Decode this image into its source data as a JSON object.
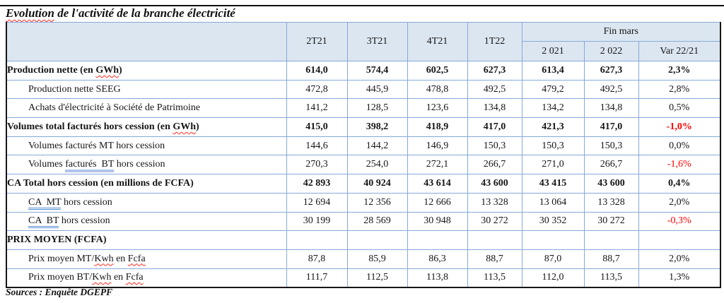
{
  "document": {
    "title_segments": [
      {
        "t": "Evolution",
        "m": "spell"
      },
      {
        "t": " de l'activité de la branche électricité",
        "m": null
      }
    ],
    "source_note": "Sources : Enquête DGEPF"
  },
  "table": {
    "corner_label": "",
    "quarters": [
      "2T21",
      "3T21",
      "4T21",
      "1T22"
    ],
    "fin_mars": {
      "label": "Fin mars",
      "sub": [
        "2 021",
        "2 022",
        "Var 22/21"
      ]
    },
    "rows": [
      {
        "label": [
          {
            "t": "Production nette (en ",
            "m": null
          },
          {
            "t": "GWh",
            "m": "spell"
          },
          {
            "t": ")",
            "m": null
          }
        ],
        "bold": true,
        "indent": false,
        "top": "black",
        "values": [
          "614,0",
          "574,4",
          "602,5",
          "627,3",
          "613,4",
          "627,3"
        ],
        "var": {
          "text": "2,3%",
          "negative": false
        }
      },
      {
        "label": [
          {
            "t": "Production nette SEEG",
            "m": null
          }
        ],
        "bold": false,
        "indent": true,
        "top": "blue",
        "values": [
          "472,8",
          "445,9",
          "478,8",
          "492,5",
          "479,2",
          "492,5"
        ],
        "var": {
          "text": "2,8%",
          "negative": false
        }
      },
      {
        "label": [
          {
            "t": "Achats d'électricité à Société de Patrimoine",
            "m": null
          }
        ],
        "bold": false,
        "indent": true,
        "top": "blue",
        "values": [
          "141,2",
          "128,5",
          "123,6",
          "134,8",
          "134,2",
          "134,8"
        ],
        "var": {
          "text": "0,5%",
          "negative": false
        }
      },
      {
        "label": [
          {
            "t": "Volumes total facturés hors cession (en ",
            "m": null
          },
          {
            "t": "GWh",
            "m": "spell"
          },
          {
            "t": ")",
            "m": null
          }
        ],
        "bold": true,
        "indent": false,
        "top": "black",
        "values": [
          "415,0",
          "398,2",
          "418,9",
          "417,0",
          "421,3",
          "417,0"
        ],
        "var": {
          "text": "-1,0%",
          "negative": true
        }
      },
      {
        "label": [
          {
            "t": "Volumes facturés MT hors cession",
            "m": null
          }
        ],
        "bold": false,
        "indent": true,
        "top": "blue",
        "values": [
          "144,6",
          "144,2",
          "146,9",
          "150,3",
          "150,3",
          "150,3"
        ],
        "var": {
          "text": "0,0%",
          "negative": false
        }
      },
      {
        "label": [
          {
            "t": "Volumes ",
            "m": null
          },
          {
            "t": "facturés  BT",
            "m": "grammar-thick"
          },
          {
            "t": " hors cession",
            "m": null
          }
        ],
        "bold": false,
        "indent": true,
        "top": "blue",
        "values": [
          "270,3",
          "254,0",
          "272,1",
          "266,7",
          "271,0",
          "266,7"
        ],
        "var": {
          "text": "-1,6%",
          "negative": true
        }
      },
      {
        "label": [
          {
            "t": "CA Total hors cession (en millions de FCFA)",
            "m": null
          }
        ],
        "bold": true,
        "indent": false,
        "top": "black",
        "values": [
          "42 893",
          "40 924",
          "43 614",
          "43 600",
          "43 415",
          "43 600"
        ],
        "var": {
          "text": "0,4%",
          "negative": false
        }
      },
      {
        "label": [
          {
            "t": "CA  MT",
            "m": "grammar"
          },
          {
            "t": " hors cession",
            "m": null
          }
        ],
        "bold": false,
        "indent": true,
        "top": "blue",
        "values": [
          "12 694",
          "12 356",
          "12 666",
          "13 328",
          "13 064",
          "13 328"
        ],
        "var": {
          "text": "2,0%",
          "negative": false
        }
      },
      {
        "label": [
          {
            "t": "CA  BT",
            "m": "grammar"
          },
          {
            "t": " hors cession",
            "m": null
          }
        ],
        "bold": false,
        "indent": true,
        "top": "blue",
        "values": [
          "30 199",
          "28 569",
          "30 948",
          "30 272",
          "30 352",
          "30 272"
        ],
        "var": {
          "text": "-0,3%",
          "negative": true
        }
      },
      {
        "label": [
          {
            "t": "PRIX MOYEN (FCFA)",
            "m": null
          }
        ],
        "bold": true,
        "indent": false,
        "top": "black",
        "values": [
          "",
          "",
          "",
          "",
          "",
          ""
        ],
        "var": {
          "text": "",
          "negative": false
        }
      },
      {
        "label": [
          {
            "t": "Prix moyen MT/",
            "m": null
          },
          {
            "t": "Kwh",
            "m": "spell"
          },
          {
            "t": " en ",
            "m": null
          },
          {
            "t": "Fcfa",
            "m": "spell"
          }
        ],
        "bold": false,
        "indent": true,
        "top": "black-label",
        "values": [
          "87,8",
          "85,9",
          "86,3",
          "88,7",
          "87,0",
          "88,7"
        ],
        "var": {
          "text": "2,0%",
          "negative": false
        }
      },
      {
        "label": [
          {
            "t": "Prix moyen BT/",
            "m": null
          },
          {
            "t": "Kwh",
            "m": "spell"
          },
          {
            "t": " en ",
            "m": null
          },
          {
            "t": "Fcfa",
            "m": "spell"
          }
        ],
        "bold": false,
        "indent": true,
        "top": "blue",
        "values": [
          "111,7",
          "112,5",
          "113,8",
          "113,5",
          "112,0",
          "113,5"
        ],
        "var": {
          "text": "1,3%",
          "negative": false
        }
      }
    ]
  },
  "colors": {
    "header_bg": "#dce6f1",
    "grid_blue": "#85a9d9",
    "border_black": "#161616",
    "negative_red": "#ff0000",
    "spellcheck_red": "#ff271c",
    "grammar_blue": "#5b8fd4"
  }
}
